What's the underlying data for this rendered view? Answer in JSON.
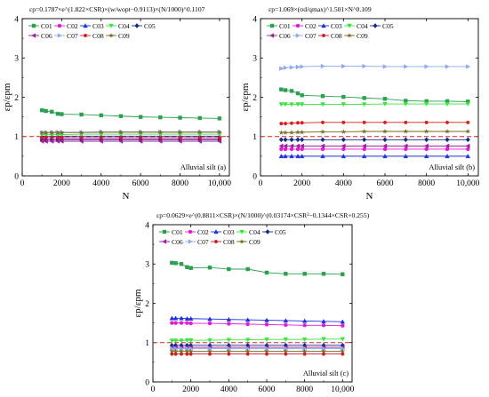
{
  "figure": {
    "background": "#ffffff",
    "colors": {
      "C01": "#2ca050",
      "C02": "#e619d6",
      "C03": "#1f31e0",
      "C04": "#39e63d",
      "C05": "#102a8a",
      "C06": "#9a1f9e",
      "C07": "#8fa8ee",
      "C08": "#d91c1c",
      "C09": "#7a6a20"
    },
    "reference_line_color": "#d62728",
    "markers": {
      "C01": "square",
      "C02": "circle",
      "C03": "triangle-up",
      "C04": "triangle-down",
      "C05": "diamond",
      "C06": "triangle-left",
      "C07": "triangle-right",
      "C08": "hexagon",
      "C09": "star"
    }
  },
  "chart_data": [
    {
      "type": "line",
      "panel": "a",
      "equation": "εp=0.1787×e^(1.822×CSR)×(w/wopt−0.9113)×(N/1000)^0.1107",
      "panel_label": "Alluvial silt (a)",
      "xlabel": "N",
      "ylabel": "εp/εpm",
      "xlim": [
        0,
        10500
      ],
      "ylim": [
        0,
        4
      ],
      "xticks": [
        "0",
        "2000",
        "4000",
        "6000",
        "8000",
        "10,000"
      ],
      "yticks": [
        "0",
        "1",
        "2",
        "3",
        "4"
      ],
      "reference_y": 1,
      "grid": false,
      "legend_position": "top-left",
      "x": [
        1000,
        1200,
        1500,
        1800,
        2000,
        3000,
        4000,
        5000,
        6000,
        7000,
        8000,
        9000,
        10000
      ],
      "series": [
        {
          "name": "C01",
          "values": [
            1.67,
            1.65,
            1.63,
            1.58,
            1.57,
            1.56,
            1.54,
            1.52,
            1.5,
            1.49,
            1.48,
            1.47,
            1.46
          ]
        },
        {
          "name": "C02",
          "values": [
            0.92,
            0.92,
            0.92,
            0.92,
            0.93,
            0.93,
            0.93,
            0.93,
            0.93,
            0.93,
            0.93,
            0.93,
            0.93
          ]
        },
        {
          "name": "C03",
          "values": [
            1.01,
            1.01,
            1.01,
            1.01,
            1.01,
            1.01,
            1.01,
            1.01,
            1.01,
            1.01,
            1.01,
            1.01,
            1.01
          ]
        },
        {
          "name": "C04",
          "values": [
            1.05,
            1.05,
            1.05,
            1.05,
            1.05,
            1.06,
            1.06,
            1.06,
            1.06,
            1.06,
            1.06,
            1.06,
            1.06
          ]
        },
        {
          "name": "C05",
          "values": [
            0.92,
            0.92,
            0.92,
            0.92,
            0.92,
            0.92,
            0.92,
            0.92,
            0.92,
            0.92,
            0.92,
            0.92,
            0.92
          ]
        },
        {
          "name": "C06",
          "values": [
            0.88,
            0.88,
            0.88,
            0.88,
            0.88,
            0.88,
            0.88,
            0.88,
            0.88,
            0.88,
            0.88,
            0.88,
            0.88
          ]
        },
        {
          "name": "C07",
          "values": [
            1.1,
            1.1,
            1.11,
            1.11,
            1.11,
            1.11,
            1.12,
            1.12,
            1.12,
            1.12,
            1.12,
            1.12,
            1.12
          ]
        },
        {
          "name": "C08",
          "values": [
            0.97,
            0.97,
            0.97,
            0.97,
            0.97,
            0.97,
            0.97,
            0.97,
            0.97,
            0.97,
            0.97,
            0.97,
            0.97
          ]
        },
        {
          "name": "C09",
          "values": [
            1.1,
            1.1,
            1.1,
            1.1,
            1.1,
            1.1,
            1.11,
            1.11,
            1.11,
            1.11,
            1.11,
            1.11,
            1.11
          ]
        }
      ]
    },
    {
      "type": "line",
      "panel": "b",
      "equation": "εp=1.069×(σd/qmax)^1.501×N^0.109",
      "panel_label": "Alluvial silt (b)",
      "xlabel": "N",
      "ylabel": "εp/εpm",
      "xlim": [
        0,
        10500
      ],
      "ylim": [
        0,
        4
      ],
      "xticks": [
        "0",
        "2000",
        "4000",
        "6000",
        "8000",
        "10,000"
      ],
      "yticks": [
        "0",
        "1",
        "2",
        "3",
        "4"
      ],
      "reference_y": 1,
      "grid": false,
      "legend_position": "top-left",
      "x": [
        1000,
        1200,
        1500,
        1800,
        2000,
        3000,
        4000,
        5000,
        6000,
        7000,
        8000,
        9000,
        10000
      ],
      "series": [
        {
          "name": "C01",
          "values": [
            2.2,
            2.18,
            2.16,
            2.1,
            2.05,
            2.03,
            2.01,
            1.98,
            1.96,
            1.91,
            1.9,
            1.9,
            1.89
          ]
        },
        {
          "name": "C02",
          "values": [
            0.68,
            0.68,
            0.68,
            0.68,
            0.68,
            0.68,
            0.68,
            0.68,
            0.68,
            0.68,
            0.68,
            0.68,
            0.68
          ]
        },
        {
          "name": "C03",
          "values": [
            0.5,
            0.5,
            0.5,
            0.5,
            0.5,
            0.5,
            0.5,
            0.5,
            0.5,
            0.5,
            0.5,
            0.5,
            0.5
          ]
        },
        {
          "name": "C04",
          "values": [
            1.82,
            1.82,
            1.82,
            1.82,
            1.82,
            1.82,
            1.82,
            1.82,
            1.83,
            1.83,
            1.83,
            1.83,
            1.83
          ]
        },
        {
          "name": "C05",
          "values": [
            0.92,
            0.92,
            0.92,
            0.92,
            0.92,
            0.92,
            0.92,
            0.92,
            0.92,
            0.92,
            0.92,
            0.92,
            0.92
          ]
        },
        {
          "name": "C06",
          "values": [
            0.76,
            0.76,
            0.76,
            0.76,
            0.76,
            0.76,
            0.76,
            0.76,
            0.76,
            0.76,
            0.76,
            0.76,
            0.76
          ]
        },
        {
          "name": "C07",
          "values": [
            2.73,
            2.75,
            2.76,
            2.77,
            2.78,
            2.79,
            2.79,
            2.79,
            2.78,
            2.78,
            2.78,
            2.78,
            2.78
          ]
        },
        {
          "name": "C08",
          "values": [
            1.33,
            1.33,
            1.34,
            1.35,
            1.35,
            1.36,
            1.36,
            1.36,
            1.36,
            1.36,
            1.36,
            1.36,
            1.36
          ]
        },
        {
          "name": "C09",
          "values": [
            1.1,
            1.1,
            1.1,
            1.11,
            1.11,
            1.12,
            1.12,
            1.13,
            1.13,
            1.13,
            1.13,
            1.13,
            1.13
          ]
        }
      ]
    },
    {
      "type": "line",
      "panel": "c",
      "equation": "εp=0.0629×e^(0.8811×CSR)×(N/1000)^(0.03174×CSR²−0.1344×CSR+0.255)",
      "panel_label": "Alluvial silt (c)",
      "xlabel": "N",
      "ylabel": "εp/εpm",
      "xlim": [
        0,
        10500
      ],
      "ylim": [
        0,
        4
      ],
      "xticks": [
        "0",
        "2000",
        "4000",
        "6000",
        "8000",
        "10,000"
      ],
      "yticks": [
        "0",
        "1",
        "2",
        "3",
        "4"
      ],
      "reference_y": 1,
      "grid": false,
      "legend_position": "top-left",
      "x": [
        1000,
        1200,
        1500,
        1800,
        2000,
        3000,
        4000,
        5000,
        6000,
        7000,
        8000,
        9000,
        10000
      ],
      "series": [
        {
          "name": "C01",
          "values": [
            3.03,
            3.02,
            3.0,
            2.92,
            2.9,
            2.91,
            2.87,
            2.87,
            2.78,
            2.75,
            2.75,
            2.75,
            2.74
          ]
        },
        {
          "name": "C02",
          "values": [
            1.5,
            1.5,
            1.5,
            1.5,
            1.49,
            1.49,
            1.48,
            1.47,
            1.46,
            1.45,
            1.44,
            1.44,
            1.43
          ]
        },
        {
          "name": "C03",
          "values": [
            1.62,
            1.62,
            1.62,
            1.61,
            1.61,
            1.6,
            1.59,
            1.58,
            1.57,
            1.56,
            1.55,
            1.54,
            1.53
          ]
        },
        {
          "name": "C04",
          "values": [
            1.05,
            1.05,
            1.05,
            1.06,
            1.06,
            1.06,
            1.07,
            1.07,
            1.08,
            1.08,
            1.08,
            1.09,
            1.09
          ]
        },
        {
          "name": "C05",
          "values": [
            0.93,
            0.93,
            0.93,
            0.93,
            0.93,
            0.93,
            0.93,
            0.93,
            0.93,
            0.93,
            0.93,
            0.93,
            0.93
          ]
        },
        {
          "name": "C06",
          "values": [
            0.88,
            0.88,
            0.88,
            0.88,
            0.88,
            0.88,
            0.88,
            0.88,
            0.88,
            0.88,
            0.88,
            0.88,
            0.88
          ]
        },
        {
          "name": "C07",
          "values": [
            0.85,
            0.85,
            0.85,
            0.85,
            0.85,
            0.85,
            0.85,
            0.85,
            0.85,
            0.85,
            0.85,
            0.85,
            0.85
          ]
        },
        {
          "name": "C08",
          "values": [
            0.71,
            0.71,
            0.71,
            0.71,
            0.71,
            0.71,
            0.71,
            0.71,
            0.71,
            0.71,
            0.71,
            0.71,
            0.71
          ]
        },
        {
          "name": "C09",
          "values": [
            0.78,
            0.78,
            0.78,
            0.78,
            0.78,
            0.78,
            0.78,
            0.78,
            0.78,
            0.78,
            0.78,
            0.78,
            0.78
          ]
        }
      ]
    }
  ]
}
